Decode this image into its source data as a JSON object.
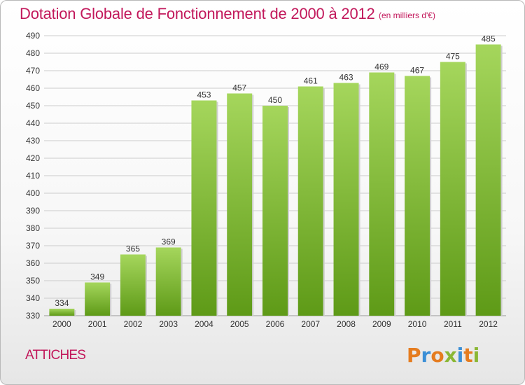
{
  "page": {
    "title": "Dotation Globale de Fonctionnement de 2000 à 2012",
    "subtitle": "(en milliers d'€)",
    "commune": "ATTICHES",
    "logo": {
      "letters": [
        "P",
        "r",
        "o",
        "x",
        "i",
        "t",
        "i"
      ],
      "colors": [
        "#e57c1f",
        "#3b8fd6",
        "#e57c1f",
        "#8ab734",
        "#3b8fd6",
        "#e57c1f",
        "#8ab734"
      ]
    }
  },
  "colors": {
    "accent": "#c2185b",
    "bar_top": "#a5d65c",
    "bar_bottom": "#5e9a17",
    "grid": "#cccccc",
    "axis_text": "#333333"
  },
  "chart_data": {
    "type": "bar",
    "title": "Dotation Globale de Fonctionnement de 2000 à 2012",
    "subtitle": "(en milliers d'€)",
    "categories": [
      "2000",
      "2001",
      "2002",
      "2003",
      "2004",
      "2005",
      "2006",
      "2007",
      "2008",
      "2009",
      "2010",
      "2011",
      "2012"
    ],
    "values": [
      334,
      349,
      365,
      369,
      453,
      457,
      450,
      461,
      463,
      469,
      467,
      475,
      485
    ],
    "ylim": [
      330,
      490
    ],
    "yticks": [
      330,
      340,
      350,
      360,
      370,
      380,
      390,
      400,
      410,
      420,
      430,
      440,
      450,
      460,
      470,
      480,
      490
    ],
    "grid": true,
    "data_labels": true,
    "xlabel": "",
    "ylabel": ""
  }
}
